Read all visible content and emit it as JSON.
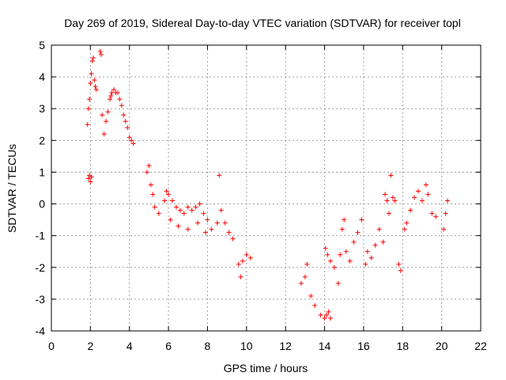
{
  "chart_data": {
    "type": "scatter",
    "title": "Day 269 of 2019, Sidereal Day-to-day VTEC variation (SDTVAR) for receiver topl",
    "xlabel": "GPS time / hours",
    "ylabel": "SDTVAR / TECUs",
    "xlim": [
      0,
      22
    ],
    "ylim": [
      -4,
      5
    ],
    "xticks": [
      "0",
      "2",
      "4",
      "6",
      "8",
      "10",
      "12",
      "14",
      "16",
      "18",
      "20",
      "22"
    ],
    "yticks": [
      "-4",
      "-3",
      "-2",
      "-1",
      "0",
      "1",
      "2",
      "3",
      "4",
      "5"
    ],
    "grid": true,
    "marker": "+",
    "color": "#ff0000",
    "series": [
      {
        "name": "SDTVAR",
        "x": [
          1.85,
          1.9,
          1.95,
          2.0,
          2.05,
          2.1,
          2.15,
          2.2,
          2.25,
          2.3,
          1.9,
          1.95,
          2.0,
          2.05,
          2.5,
          2.55,
          2.6,
          2.7,
          2.8,
          2.9,
          3.0,
          3.05,
          3.1,
          3.2,
          3.3,
          3.4,
          3.5,
          3.6,
          3.7,
          3.8,
          3.9,
          4.0,
          4.1,
          4.2,
          4.9,
          5.0,
          5.1,
          5.2,
          5.3,
          5.5,
          5.8,
          5.9,
          6.0,
          6.2,
          6.4,
          6.6,
          6.8,
          7.0,
          7.2,
          7.4,
          7.6,
          7.8,
          8.0,
          6.1,
          6.5,
          7.0,
          7.5,
          7.9,
          8.2,
          8.5,
          8.6,
          8.7,
          8.9,
          9.1,
          9.3,
          9.6,
          9.7,
          9.8,
          10.0,
          10.2,
          12.8,
          13.0,
          13.1,
          13.3,
          13.5,
          13.8,
          14.0,
          14.1,
          14.2,
          14.3,
          14.05,
          14.15,
          14.3,
          14.5,
          14.7,
          14.8,
          14.9,
          15.0,
          15.1,
          15.3,
          15.5,
          15.7,
          15.9,
          16.1,
          16.2,
          16.4,
          16.6,
          16.8,
          17.0,
          17.1,
          17.2,
          17.3,
          17.4,
          17.5,
          17.6,
          17.8,
          17.9,
          18.1,
          18.2,
          18.4,
          18.6,
          18.8,
          19.0,
          19.2,
          19.3,
          19.5,
          19.7,
          20.1,
          20.2,
          20.3
        ],
        "y": [
          2.5,
          3.0,
          3.3,
          3.8,
          4.1,
          4.5,
          4.6,
          3.9,
          3.7,
          3.6,
          0.8,
          0.9,
          0.7,
          0.85,
          4.8,
          4.7,
          2.8,
          2.2,
          2.6,
          2.9,
          3.3,
          3.4,
          3.5,
          3.6,
          3.5,
          3.5,
          3.3,
          3.1,
          2.8,
          2.6,
          2.4,
          2.1,
          2.0,
          1.9,
          1.0,
          1.2,
          0.6,
          0.3,
          -0.1,
          -0.3,
          0.1,
          0.4,
          0.3,
          0.1,
          -0.1,
          -0.2,
          -0.3,
          -0.1,
          -0.2,
          -0.1,
          0.0,
          -0.3,
          -0.5,
          -0.5,
          -0.7,
          -0.8,
          -0.6,
          -0.9,
          -0.8,
          -0.6,
          0.9,
          -0.2,
          -0.6,
          -0.9,
          -1.1,
          -1.9,
          -2.3,
          -1.8,
          -1.6,
          -1.7,
          -2.5,
          -2.3,
          -1.9,
          -2.9,
          -3.2,
          -3.5,
          -3.6,
          -3.5,
          -3.4,
          -3.6,
          -1.4,
          -1.6,
          -1.8,
          -2.0,
          -2.5,
          -1.6,
          -0.8,
          -0.5,
          -1.5,
          -1.8,
          -1.2,
          -0.9,
          -0.5,
          -1.9,
          -1.5,
          -1.7,
          -1.3,
          -0.8,
          -1.2,
          0.3,
          0.1,
          -0.3,
          0.9,
          0.2,
          0.1,
          -1.9,
          -2.1,
          -0.8,
          -0.6,
          -0.2,
          0.2,
          0.4,
          0.1,
          0.6,
          0.3,
          -0.3,
          -0.4,
          -0.8,
          -0.3,
          0.1
        ]
      }
    ]
  }
}
